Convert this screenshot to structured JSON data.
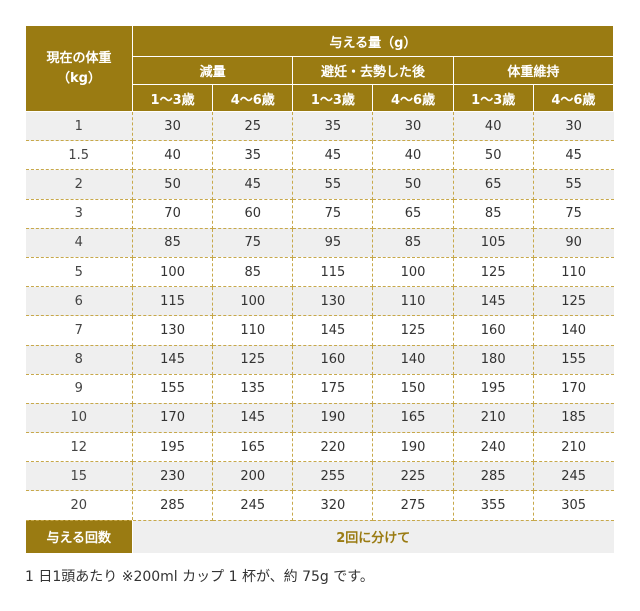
{
  "header": {
    "weight_label_line1": "現在の体重",
    "weight_label_line2": "（kg）",
    "amount_title": "与える量（g）",
    "groups": [
      "減量",
      "避妊・去勢した後",
      "体重維持"
    ],
    "age_labels": [
      "1〜3歳",
      "4〜6歳",
      "1〜3歳",
      "4〜6歳",
      "1〜3歳",
      "4〜6歳"
    ]
  },
  "rows": [
    [
      "1",
      "30",
      "25",
      "35",
      "30",
      "40",
      "30"
    ],
    [
      "1.5",
      "40",
      "35",
      "45",
      "40",
      "50",
      "45"
    ],
    [
      "2",
      "50",
      "45",
      "55",
      "50",
      "65",
      "55"
    ],
    [
      "3",
      "70",
      "60",
      "75",
      "65",
      "85",
      "75"
    ],
    [
      "4",
      "85",
      "75",
      "95",
      "85",
      "105",
      "90"
    ],
    [
      "5",
      "100",
      "85",
      "115",
      "100",
      "125",
      "110"
    ],
    [
      "6",
      "115",
      "100",
      "130",
      "110",
      "145",
      "125"
    ],
    [
      "7",
      "130",
      "110",
      "145",
      "125",
      "160",
      "140"
    ],
    [
      "8",
      "145",
      "125",
      "160",
      "140",
      "180",
      "155"
    ],
    [
      "9",
      "155",
      "135",
      "175",
      "150",
      "195",
      "170"
    ],
    [
      "10",
      "170",
      "145",
      "190",
      "165",
      "210",
      "185"
    ],
    [
      "12",
      "195",
      "165",
      "220",
      "190",
      "240",
      "210"
    ],
    [
      "15",
      "230",
      "200",
      "255",
      "225",
      "285",
      "245"
    ],
    [
      "20",
      "285",
      "245",
      "320",
      "275",
      "355",
      "305"
    ]
  ],
  "footer": {
    "label": "与える回数",
    "value": "2回に分けて"
  },
  "note": "1 日1頭あたり ※200ml カップ 1 杯が、約 75g です。",
  "colors": {
    "header_bg": "#9a7b12",
    "stripe": "#efefef",
    "divider": "#c7a84a"
  }
}
